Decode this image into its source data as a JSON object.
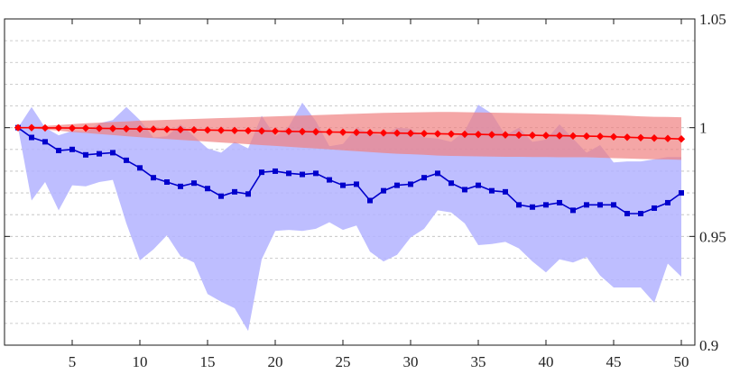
{
  "chart_data": {
    "type": "line",
    "title": "",
    "xlabel": "",
    "ylabel": "",
    "xlim": [
      0,
      51
    ],
    "ylim": [
      0.9,
      1.05
    ],
    "xticks": [
      5,
      10,
      15,
      20,
      25,
      30,
      35,
      40,
      45,
      50
    ],
    "yticks": [
      0.9,
      0.95,
      1,
      1.05
    ],
    "ytick_labels": [
      "0.9",
      "0.95",
      "1",
      "1.05"
    ],
    "yaxis_side": "right",
    "grid": "horizontal dashed, every 0.01",
    "legend": "none",
    "x": [
      1,
      2,
      3,
      4,
      5,
      6,
      7,
      8,
      9,
      10,
      11,
      12,
      13,
      14,
      15,
      16,
      17,
      18,
      19,
      20,
      21,
      22,
      23,
      24,
      25,
      26,
      27,
      28,
      29,
      30,
      31,
      32,
      33,
      34,
      35,
      36,
      37,
      38,
      39,
      40,
      41,
      42,
      43,
      44,
      45,
      46,
      47,
      48,
      49,
      50
    ],
    "series": [
      {
        "name": "red",
        "color": "#ff0000",
        "band_color": "#f08080",
        "marker": "diamond",
        "values": [
          1.0,
          1.0,
          0.9999,
          0.9999,
          0.9998,
          0.9998,
          0.9997,
          0.9996,
          0.9995,
          0.9994,
          0.9993,
          0.9992,
          0.9991,
          0.999,
          0.9989,
          0.9988,
          0.9987,
          0.9986,
          0.9985,
          0.9984,
          0.9983,
          0.9982,
          0.9981,
          0.998,
          0.9979,
          0.9978,
          0.9977,
          0.9976,
          0.9975,
          0.9974,
          0.9973,
          0.9972,
          0.9971,
          0.997,
          0.9969,
          0.9968,
          0.9967,
          0.9966,
          0.9965,
          0.9964,
          0.9963,
          0.9962,
          0.9961,
          0.996,
          0.9958,
          0.9956,
          0.9954,
          0.9952,
          0.995,
          0.9948
        ],
        "upper": [
          1.0,
          1.0004,
          1.0008,
          1.0012,
          1.0016,
          1.002,
          1.0023,
          1.0026,
          1.0029,
          1.0032,
          1.0034,
          1.0036,
          1.0038,
          1.004,
          1.0042,
          1.0044,
          1.0046,
          1.0048,
          1.005,
          1.0052,
          1.0054,
          1.0056,
          1.0058,
          1.006,
          1.0062,
          1.0064,
          1.0066,
          1.0068,
          1.0069,
          1.007,
          1.0071,
          1.0072,
          1.0072,
          1.0071,
          1.007,
          1.0069,
          1.0068,
          1.0067,
          1.0066,
          1.0065,
          1.0064,
          1.0063,
          1.0062,
          1.006,
          1.0058,
          1.0055,
          1.0052,
          1.005,
          1.0049,
          1.0048
        ],
        "lower": [
          1.0,
          0.9996,
          0.9991,
          0.9986,
          0.998,
          0.9976,
          0.9971,
          0.9966,
          0.9961,
          0.9956,
          0.9952,
          0.9948,
          0.9944,
          0.994,
          0.9936,
          0.9932,
          0.9928,
          0.9924,
          0.992,
          0.9916,
          0.9912,
          0.9908,
          0.9904,
          0.99,
          0.9896,
          0.9892,
          0.9888,
          0.9884,
          0.988,
          0.9878,
          0.9875,
          0.9872,
          0.987,
          0.9869,
          0.9868,
          0.9867,
          0.9866,
          0.9866,
          0.9865,
          0.9865,
          0.9864,
          0.9864,
          0.9864,
          0.9862,
          0.986,
          0.9858,
          0.9856,
          0.9855,
          0.9854,
          0.9852
        ]
      },
      {
        "name": "blue",
        "color": "#0000cc",
        "band_color": "#b3b3ff",
        "marker": "square",
        "values": [
          1.0,
          0.9955,
          0.9935,
          0.9895,
          0.99,
          0.9875,
          0.988,
          0.9885,
          0.985,
          0.9815,
          0.977,
          0.975,
          0.973,
          0.9745,
          0.972,
          0.9685,
          0.9705,
          0.9695,
          0.9795,
          0.98,
          0.979,
          0.9785,
          0.979,
          0.976,
          0.9735,
          0.974,
          0.9665,
          0.971,
          0.9735,
          0.974,
          0.977,
          0.979,
          0.9745,
          0.9715,
          0.9735,
          0.971,
          0.9705,
          0.9645,
          0.9635,
          0.9645,
          0.9655,
          0.962,
          0.9645,
          0.9645,
          0.9645,
          0.9605,
          0.9605,
          0.963,
          0.9655,
          0.97
        ],
        "upper": [
          1.0,
          1.0095,
          1.0,
          0.9965,
          0.9985,
          0.998,
          1.002,
          1.0035,
          1.0095,
          1.0035,
          0.9955,
          0.996,
          1.0015,
          0.996,
          0.9905,
          0.9885,
          0.9935,
          0.9905,
          1.0055,
          0.996,
          1.0005,
          1.0115,
          1.003,
          0.9915,
          0.9925,
          1.0,
          0.9975,
          0.9965,
          1.0,
          0.9995,
          0.9955,
          0.995,
          0.9935,
          0.9985,
          1.0105,
          1.0065,
          0.9965,
          1.0,
          0.9935,
          0.9945,
          1.0015,
          0.995,
          0.9885,
          0.992,
          0.984,
          0.9845,
          0.9845,
          0.9855,
          0.9865,
          0.9865
        ],
        "lower": [
          1.0,
          0.9665,
          0.975,
          0.962,
          0.9735,
          0.973,
          0.975,
          0.976,
          0.956,
          0.939,
          0.944,
          0.9505,
          0.941,
          0.938,
          0.9235,
          0.92,
          0.917,
          0.9065,
          0.9395,
          0.9525,
          0.953,
          0.9525,
          0.9535,
          0.9565,
          0.953,
          0.955,
          0.943,
          0.9385,
          0.9415,
          0.9495,
          0.9535,
          0.962,
          0.961,
          0.956,
          0.946,
          0.9465,
          0.9475,
          0.9445,
          0.9385,
          0.9335,
          0.9395,
          0.938,
          0.9405,
          0.932,
          0.9265,
          0.9265,
          0.9265,
          0.9195,
          0.9375,
          0.9315
        ]
      }
    ]
  }
}
